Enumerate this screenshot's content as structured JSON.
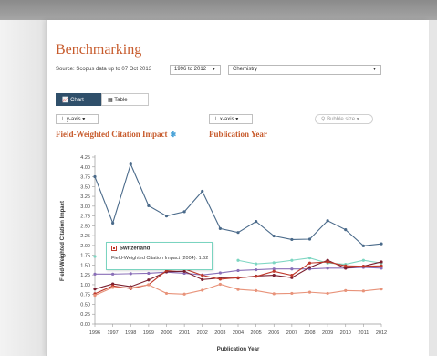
{
  "page": {
    "title": "Benchmarking",
    "source_text": "Source: Scopus data up to 07 Oct 2013",
    "year_range": "1996 to 2012",
    "subject": "Chemistry",
    "view_tabs": {
      "chart": "Chart",
      "table": "Table"
    },
    "y_axis_button": "y-axis",
    "x_axis_button": "x-axis",
    "bubble_button": "Bubble size",
    "y_metric": "Field-Weighted Citation Impact",
    "x_metric": "Publication Year"
  },
  "tooltip": {
    "title": "Switzerland",
    "body": "Field-Weighted Citation Impact (2004): 1.62"
  },
  "colors": {
    "accent": "#c75a2b",
    "series_blue": "#4a6a8a",
    "series_teal": "#7dd6c2",
    "series_purple": "#8a6fb8",
    "series_darkred": "#7b1f2f",
    "series_red": "#c0392b",
    "series_orange": "#e8937a"
  },
  "chart_data": {
    "type": "line",
    "xlabel": "Publication Year",
    "ylabel": "Field-Weighted Citation Impact",
    "x": [
      "1996",
      "1997",
      "1998",
      "1999",
      "2000",
      "2001",
      "2002",
      "2003",
      "2004",
      "2005",
      "2006",
      "2007",
      "2008",
      "2009",
      "2010",
      "2011",
      "2012"
    ],
    "ylim": [
      0,
      4.25
    ],
    "yticks": [
      "0.00",
      "0.25",
      "0.50",
      "0.75",
      "1.00",
      "1.25",
      "1.50",
      "1.75",
      "2.00",
      "2.25",
      "2.50",
      "2.75",
      "3.00",
      "3.25",
      "3.50",
      "3.75",
      "4.00",
      "4.25"
    ],
    "series": [
      {
        "color": "#4a6a8a",
        "values": [
          3.75,
          2.57,
          4.07,
          3.01,
          2.75,
          2.86,
          3.38,
          2.43,
          2.33,
          2.61,
          2.24,
          2.15,
          2.16,
          2.63,
          2.4,
          1.99,
          2.04
        ]
      },
      {
        "color": "#7dd6c2",
        "values": [
          1.72,
          null,
          null,
          null,
          null,
          null,
          null,
          null,
          1.62,
          1.53,
          1.56,
          1.62,
          1.68,
          1.55,
          1.52,
          1.62,
          1.55
        ]
      },
      {
        "color": "#8a6fb8",
        "values": [
          1.27,
          1.27,
          1.28,
          1.29,
          1.32,
          1.29,
          1.25,
          1.3,
          1.36,
          1.38,
          1.4,
          1.4,
          1.4,
          1.42,
          1.42,
          1.44,
          1.42
        ]
      },
      {
        "color": "#7b1f2f",
        "values": [
          0.89,
          1.02,
          0.95,
          1.12,
          1.33,
          1.34,
          1.13,
          1.17,
          1.17,
          1.22,
          1.24,
          1.18,
          1.44,
          1.62,
          1.42,
          1.47,
          1.58
        ]
      },
      {
        "color": "#c0392b",
        "values": [
          0.77,
          0.97,
          0.9,
          1.0,
          1.36,
          1.4,
          1.24,
          1.14,
          1.18,
          1.21,
          1.34,
          1.24,
          1.55,
          1.58,
          1.48,
          1.47,
          1.48
        ]
      },
      {
        "color": "#e8937a",
        "values": [
          0.73,
          0.93,
          0.92,
          1.0,
          0.78,
          0.76,
          0.86,
          1.01,
          0.88,
          0.85,
          0.77,
          0.78,
          0.81,
          0.78,
          0.85,
          0.84,
          0.89
        ]
      }
    ]
  }
}
